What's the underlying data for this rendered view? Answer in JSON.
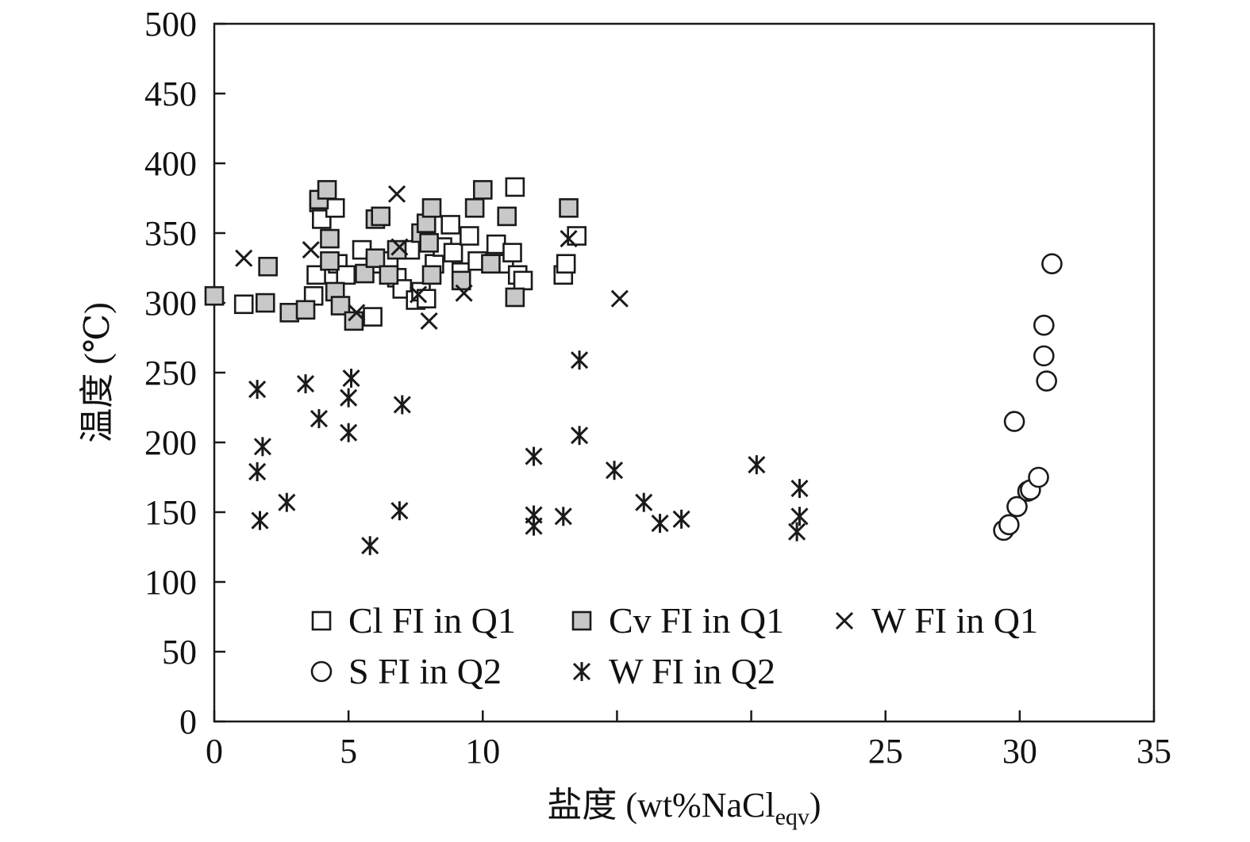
{
  "chart_data": {
    "type": "scatter",
    "title": "",
    "xlabel": "盐度 (wt%NaCl",
    "xlabel_subscript": "eqv",
    "xlabel_close": ")",
    "ylabel": "温度 (℃)",
    "xlim": [
      0,
      35
    ],
    "ylim": [
      0,
      500
    ],
    "x_ticks": [
      0,
      5,
      10,
      25,
      30,
      35
    ],
    "x_minor_ticks": [
      15,
      20
    ],
    "y_ticks": [
      0,
      50,
      100,
      150,
      200,
      250,
      300,
      350,
      400,
      450,
      500
    ],
    "grid": false,
    "legend_position": "bottom-left inside",
    "series": [
      {
        "name": "Cl FI in Q1",
        "marker": "open-square",
        "color": "#1a1a1a",
        "points": [
          [
            1.1,
            299
          ],
          [
            3.7,
            305
          ],
          [
            3.8,
            320
          ],
          [
            3.9,
            372
          ],
          [
            4.0,
            360
          ],
          [
            4.5,
            368
          ],
          [
            4.6,
            328
          ],
          [
            4.9,
            320
          ],
          [
            5.5,
            338
          ],
          [
            5.9,
            290
          ],
          [
            6.0,
            328
          ],
          [
            6.5,
            330
          ],
          [
            6.8,
            318
          ],
          [
            7.0,
            310
          ],
          [
            7.3,
            338
          ],
          [
            7.5,
            302
          ],
          [
            7.7,
            308
          ],
          [
            7.9,
            303
          ],
          [
            8.2,
            328
          ],
          [
            8.5,
            340
          ],
          [
            8.8,
            356
          ],
          [
            8.9,
            336
          ],
          [
            9.2,
            322
          ],
          [
            9.5,
            348
          ],
          [
            9.8,
            330
          ],
          [
            10.5,
            342
          ],
          [
            10.8,
            328
          ],
          [
            11.1,
            336
          ],
          [
            11.2,
            383
          ],
          [
            11.3,
            320
          ],
          [
            11.5,
            316
          ],
          [
            13.0,
            320
          ],
          [
            13.1,
            328
          ],
          [
            13.5,
            348
          ]
        ]
      },
      {
        "name": "Cv FI in Q1",
        "marker": "filled-square",
        "color": "#c8c8c8",
        "points": [
          [
            0.0,
            305
          ],
          [
            1.9,
            300
          ],
          [
            2.0,
            326
          ],
          [
            2.8,
            293
          ],
          [
            3.4,
            295
          ],
          [
            3.9,
            374
          ],
          [
            4.2,
            381
          ],
          [
            4.3,
            346
          ],
          [
            4.3,
            330
          ],
          [
            4.5,
            308
          ],
          [
            4.7,
            298
          ],
          [
            5.2,
            287
          ],
          [
            5.6,
            321
          ],
          [
            6.0,
            332
          ],
          [
            6.0,
            360
          ],
          [
            6.2,
            362
          ],
          [
            6.5,
            320
          ],
          [
            6.8,
            338
          ],
          [
            7.7,
            350
          ],
          [
            7.9,
            357
          ],
          [
            8.0,
            343
          ],
          [
            8.1,
            368
          ],
          [
            8.1,
            320
          ],
          [
            9.2,
            316
          ],
          [
            9.7,
            368
          ],
          [
            10.0,
            381
          ],
          [
            10.3,
            328
          ],
          [
            10.9,
            362
          ],
          [
            11.2,
            304
          ],
          [
            13.2,
            368
          ]
        ]
      },
      {
        "name": "W FI in Q1",
        "marker": "x",
        "color": "#1a1a1a",
        "points": [
          [
            1.1,
            332
          ],
          [
            3.6,
            338
          ],
          [
            5.3,
            293
          ],
          [
            6.8,
            378
          ],
          [
            6.9,
            340
          ],
          [
            7.6,
            306
          ],
          [
            8.0,
            287
          ],
          [
            9.3,
            307
          ],
          [
            13.2,
            346
          ],
          [
            15.1,
            303
          ]
        ]
      },
      {
        "name": "S FI in Q2",
        "marker": "open-circle",
        "color": "#1a1a1a",
        "points": [
          [
            29.4,
            137
          ],
          [
            29.6,
            141
          ],
          [
            29.8,
            215
          ],
          [
            29.9,
            154
          ],
          [
            30.3,
            165
          ],
          [
            30.4,
            166
          ],
          [
            30.7,
            175
          ],
          [
            30.9,
            284
          ],
          [
            30.9,
            262
          ],
          [
            31.0,
            244
          ],
          [
            31.2,
            328
          ]
        ]
      },
      {
        "name": "W FI in Q2",
        "marker": "asterisk",
        "color": "#1a1a1a",
        "points": [
          [
            1.6,
            179
          ],
          [
            1.6,
            238
          ],
          [
            1.7,
            144
          ],
          [
            1.8,
            197
          ],
          [
            2.7,
            157
          ],
          [
            3.4,
            242
          ],
          [
            3.9,
            217
          ],
          [
            5.0,
            232
          ],
          [
            5.0,
            207
          ],
          [
            5.1,
            246
          ],
          [
            5.8,
            126
          ],
          [
            6.9,
            151
          ],
          [
            7.0,
            227
          ],
          [
            11.9,
            190
          ],
          [
            11.9,
            148
          ],
          [
            11.9,
            140
          ],
          [
            13.0,
            147
          ],
          [
            13.6,
            259
          ],
          [
            13.6,
            205
          ],
          [
            14.9,
            180
          ],
          [
            16.0,
            157
          ],
          [
            16.6,
            142
          ],
          [
            17.4,
            145
          ],
          [
            20.2,
            184
          ],
          [
            21.7,
            136
          ],
          [
            21.8,
            167
          ],
          [
            21.8,
            147
          ]
        ]
      }
    ]
  },
  "legend": {
    "rows": [
      [
        "Cl FI in Q1",
        "Cv FI in Q1",
        "W FI in Q1"
      ],
      [
        "S FI in Q2",
        "W FI in Q2"
      ]
    ]
  }
}
